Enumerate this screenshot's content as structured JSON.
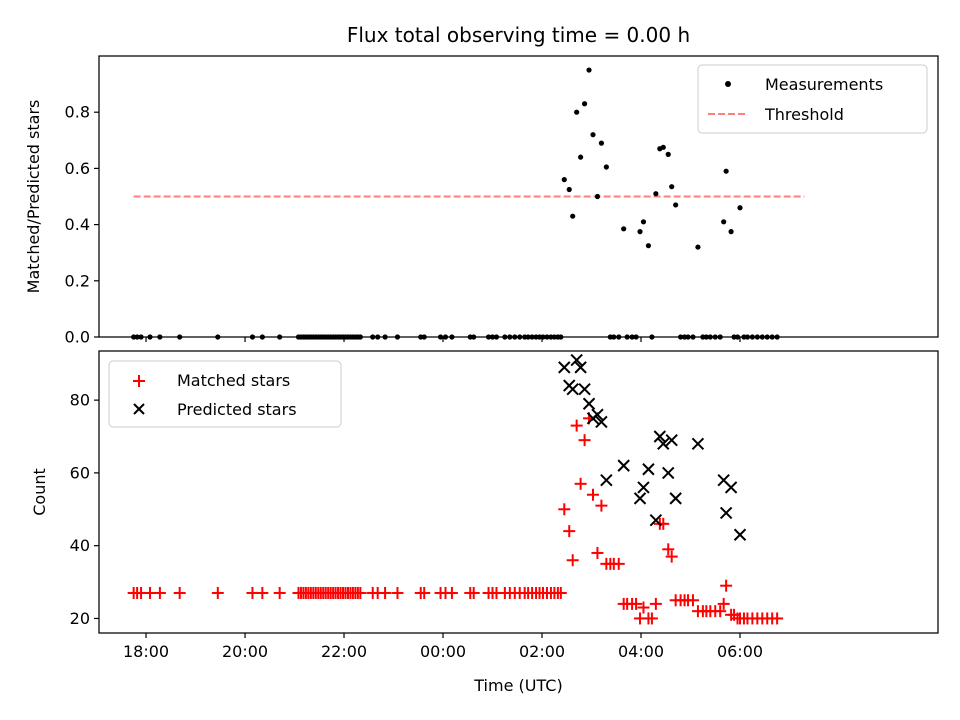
{
  "chart_data": [
    {
      "type": "scatter",
      "title": "Flux total observing time = 0.00 h",
      "xlabel": "",
      "ylabel": "Matched/Predicted stars",
      "xlim": [
        -6.95,
        10.0
      ],
      "ylim": [
        0.0,
        1.0
      ],
      "yticks": [
        0.0,
        0.2,
        0.4,
        0.6,
        0.8
      ],
      "ytick_labels": [
        "0.0",
        "0.2",
        "0.4",
        "0.6",
        "0.8"
      ],
      "legend": {
        "position": "upper right",
        "entries": [
          {
            "label": "Measurements",
            "marker": "dot",
            "color": "#000000"
          },
          {
            "label": "Threshold",
            "marker": "dashed-line",
            "color": "#ff7f7f"
          }
        ]
      },
      "threshold": {
        "value": 0.5,
        "x": [
          -6.25,
          7.3
        ]
      },
      "series": [
        {
          "name": "Measurements",
          "points": [
            [
              -6.25,
              0
            ],
            [
              -6.18,
              0
            ],
            [
              -6.1,
              0
            ],
            [
              -5.92,
              0
            ],
            [
              -5.72,
              0
            ],
            [
              -5.32,
              0
            ],
            [
              -4.55,
              0
            ],
            [
              -3.85,
              0
            ],
            [
              -3.65,
              0
            ],
            [
              -3.3,
              0
            ],
            [
              -2.92,
              0
            ],
            [
              -2.87,
              0
            ],
            [
              -2.82,
              0
            ],
            [
              -2.77,
              0
            ],
            [
              -2.72,
              0
            ],
            [
              -2.67,
              0
            ],
            [
              -2.62,
              0
            ],
            [
              -2.57,
              0
            ],
            [
              -2.52,
              0
            ],
            [
              -2.47,
              0
            ],
            [
              -2.42,
              0
            ],
            [
              -2.37,
              0
            ],
            [
              -2.32,
              0
            ],
            [
              -2.27,
              0
            ],
            [
              -2.22,
              0
            ],
            [
              -2.17,
              0
            ],
            [
              -2.12,
              0
            ],
            [
              -2.07,
              0
            ],
            [
              -2.02,
              0
            ],
            [
              -1.97,
              0
            ],
            [
              -1.92,
              0
            ],
            [
              -1.87,
              0
            ],
            [
              -1.82,
              0
            ],
            [
              -1.77,
              0
            ],
            [
              -1.72,
              0
            ],
            [
              -1.67,
              0
            ],
            [
              -1.42,
              0
            ],
            [
              -1.32,
              0
            ],
            [
              -1.17,
              0
            ],
            [
              -0.92,
              0
            ],
            [
              -0.45,
              0
            ],
            [
              -0.38,
              0
            ],
            [
              -0.05,
              0
            ],
            [
              0.05,
              0
            ],
            [
              0.18,
              0
            ],
            [
              0.55,
              0
            ],
            [
              0.62,
              0
            ],
            [
              0.92,
              0
            ],
            [
              1.0,
              0
            ],
            [
              1.08,
              0
            ],
            [
              1.25,
              0
            ],
            [
              1.35,
              0
            ],
            [
              1.45,
              0
            ],
            [
              1.55,
              0
            ],
            [
              1.65,
              0
            ],
            [
              1.72,
              0
            ],
            [
              1.8,
              0
            ],
            [
              1.88,
              0
            ],
            [
              1.95,
              0
            ],
            [
              2.02,
              0
            ],
            [
              2.1,
              0
            ],
            [
              2.18,
              0
            ],
            [
              2.25,
              0
            ],
            [
              2.32,
              0
            ],
            [
              2.38,
              0
            ],
            [
              2.45,
              0.56
            ],
            [
              2.55,
              0.525
            ],
            [
              2.62,
              0.43
            ],
            [
              2.7,
              0.8
            ],
            [
              2.78,
              0.64
            ],
            [
              2.86,
              0.83
            ],
            [
              2.95,
              0.95
            ],
            [
              3.03,
              0.72
            ],
            [
              3.12,
              0.5
            ],
            [
              3.2,
              0.69
            ],
            [
              3.3,
              0.605
            ],
            [
              3.38,
              0
            ],
            [
              3.45,
              0
            ],
            [
              3.55,
              0
            ],
            [
              3.65,
              0.385
            ],
            [
              3.72,
              0
            ],
            [
              3.82,
              0
            ],
            [
              3.9,
              0
            ],
            [
              3.98,
              0.375
            ],
            [
              4.05,
              0.41
            ],
            [
              4.15,
              0.325
            ],
            [
              4.22,
              0
            ],
            [
              4.3,
              0.51
            ],
            [
              4.38,
              0.67
            ],
            [
              4.45,
              0.675
            ],
            [
              4.55,
              0.65
            ],
            [
              4.62,
              0.535
            ],
            [
              4.7,
              0.47
            ],
            [
              4.8,
              0
            ],
            [
              4.88,
              0
            ],
            [
              4.95,
              0
            ],
            [
              5.05,
              0
            ],
            [
              5.15,
              0.32
            ],
            [
              5.25,
              0
            ],
            [
              5.32,
              0
            ],
            [
              5.4,
              0
            ],
            [
              5.5,
              0
            ],
            [
              5.6,
              0
            ],
            [
              5.67,
              0.41
            ],
            [
              5.72,
              0.59
            ],
            [
              5.82,
              0.375
            ],
            [
              5.88,
              0
            ],
            [
              5.95,
              0
            ],
            [
              6.0,
              0.46
            ],
            [
              6.08,
              0
            ],
            [
              6.15,
              0
            ],
            [
              6.25,
              0
            ],
            [
              6.35,
              0
            ],
            [
              6.45,
              0
            ],
            [
              6.55,
              0
            ],
            [
              6.65,
              0
            ],
            [
              6.75,
              0
            ]
          ]
        }
      ]
    },
    {
      "type": "scatter",
      "title": "",
      "xlabel": "Time (UTC)",
      "ylabel": "Count",
      "xlim": [
        -6.95,
        10.0
      ],
      "ylim": [
        16.0,
        93.5
      ],
      "yticks": [
        20,
        40,
        60,
        80
      ],
      "ytick_labels": [
        "20",
        "40",
        "60",
        "80"
      ],
      "xticks": [
        -6,
        -4,
        -2,
        0,
        2,
        4,
        6
      ],
      "xtick_labels": [
        "18:00",
        "20:00",
        "22:00",
        "00:00",
        "02:00",
        "04:00",
        "06:00"
      ],
      "legend": {
        "position": "upper left",
        "entries": [
          {
            "label": "Matched stars",
            "marker": "plus",
            "color": "#ff0000"
          },
          {
            "label": "Predicted stars",
            "marker": "x",
            "color": "#000000"
          }
        ]
      },
      "series": [
        {
          "name": "Matched stars",
          "points": [
            [
              -6.25,
              27
            ],
            [
              -6.18,
              27
            ],
            [
              -6.1,
              27
            ],
            [
              -5.92,
              27
            ],
            [
              -5.72,
              27
            ],
            [
              -5.32,
              27
            ],
            [
              -4.55,
              27
            ],
            [
              -3.85,
              27
            ],
            [
              -3.65,
              27
            ],
            [
              -3.3,
              27
            ],
            [
              -2.92,
              27
            ],
            [
              -2.87,
              27
            ],
            [
              -2.82,
              27
            ],
            [
              -2.77,
              27
            ],
            [
              -2.72,
              27
            ],
            [
              -2.67,
              27
            ],
            [
              -2.62,
              27
            ],
            [
              -2.57,
              27
            ],
            [
              -2.52,
              27
            ],
            [
              -2.47,
              27
            ],
            [
              -2.42,
              27
            ],
            [
              -2.37,
              27
            ],
            [
              -2.32,
              27
            ],
            [
              -2.27,
              27
            ],
            [
              -2.22,
              27
            ],
            [
              -2.17,
              27
            ],
            [
              -2.12,
              27
            ],
            [
              -2.07,
              27
            ],
            [
              -2.02,
              27
            ],
            [
              -1.97,
              27
            ],
            [
              -1.92,
              27
            ],
            [
              -1.87,
              27
            ],
            [
              -1.82,
              27
            ],
            [
              -1.77,
              27
            ],
            [
              -1.72,
              27
            ],
            [
              -1.67,
              27
            ],
            [
              -1.42,
              27
            ],
            [
              -1.32,
              27
            ],
            [
              -1.17,
              27
            ],
            [
              -0.92,
              27
            ],
            [
              -0.45,
              27
            ],
            [
              -0.38,
              27
            ],
            [
              -0.05,
              27
            ],
            [
              0.05,
              27
            ],
            [
              0.18,
              27
            ],
            [
              0.55,
              27
            ],
            [
              0.62,
              27
            ],
            [
              0.92,
              27
            ],
            [
              1.0,
              27
            ],
            [
              1.08,
              27
            ],
            [
              1.25,
              27
            ],
            [
              1.35,
              27
            ],
            [
              1.45,
              27
            ],
            [
              1.55,
              27
            ],
            [
              1.65,
              27
            ],
            [
              1.72,
              27
            ],
            [
              1.8,
              27
            ],
            [
              1.88,
              27
            ],
            [
              1.95,
              27
            ],
            [
              2.02,
              27
            ],
            [
              2.1,
              27
            ],
            [
              2.18,
              27
            ],
            [
              2.25,
              27
            ],
            [
              2.32,
              27
            ],
            [
              2.38,
              27
            ],
            [
              2.45,
              50
            ],
            [
              2.55,
              44
            ],
            [
              2.62,
              36
            ],
            [
              2.7,
              73
            ],
            [
              2.78,
              57
            ],
            [
              2.86,
              69
            ],
            [
              2.95,
              75
            ],
            [
              3.03,
              54
            ],
            [
              3.12,
              38
            ],
            [
              3.2,
              51
            ],
            [
              3.3,
              35
            ],
            [
              3.38,
              35
            ],
            [
              3.45,
              35
            ],
            [
              3.55,
              35
            ],
            [
              3.65,
              24
            ],
            [
              3.72,
              24
            ],
            [
              3.82,
              24
            ],
            [
              3.9,
              24
            ],
            [
              3.98,
              20
            ],
            [
              4.05,
              23
            ],
            [
              4.15,
              20
            ],
            [
              4.22,
              20
            ],
            [
              4.3,
              24
            ],
            [
              4.38,
              46
            ],
            [
              4.45,
              46
            ],
            [
              4.55,
              39
            ],
            [
              4.62,
              37
            ],
            [
              4.7,
              25
            ],
            [
              4.8,
              25
            ],
            [
              4.88,
              25
            ],
            [
              4.95,
              25
            ],
            [
              5.05,
              25
            ],
            [
              5.15,
              22
            ],
            [
              5.25,
              22
            ],
            [
              5.32,
              22
            ],
            [
              5.4,
              22
            ],
            [
              5.5,
              22
            ],
            [
              5.6,
              22
            ],
            [
              5.67,
              24
            ],
            [
              5.72,
              29
            ],
            [
              5.82,
              21
            ],
            [
              5.88,
              21
            ],
            [
              5.95,
              20
            ],
            [
              6.0,
              20
            ],
            [
              6.08,
              20
            ],
            [
              6.15,
              20
            ],
            [
              6.25,
              20
            ],
            [
              6.35,
              20
            ],
            [
              6.45,
              20
            ],
            [
              6.55,
              20
            ],
            [
              6.65,
              20
            ],
            [
              6.75,
              20
            ]
          ]
        },
        {
          "name": "Predicted stars",
          "points": [
            [
              2.45,
              89
            ],
            [
              2.55,
              84
            ],
            [
              2.62,
              83
            ],
            [
              2.7,
              91
            ],
            [
              2.78,
              89
            ],
            [
              2.86,
              83
            ],
            [
              2.95,
              79
            ],
            [
              3.03,
              75
            ],
            [
              3.12,
              76
            ],
            [
              3.2,
              74
            ],
            [
              3.3,
              58
            ],
            [
              3.65,
              62
            ],
            [
              3.98,
              53
            ],
            [
              4.05,
              56
            ],
            [
              4.15,
              61
            ],
            [
              4.3,
              47
            ],
            [
              4.38,
              70
            ],
            [
              4.45,
              68
            ],
            [
              4.55,
              60
            ],
            [
              4.62,
              69
            ],
            [
              4.7,
              53
            ],
            [
              5.15,
              68
            ],
            [
              5.67,
              58
            ],
            [
              5.72,
              49
            ],
            [
              5.82,
              56
            ],
            [
              6.0,
              43
            ]
          ]
        }
      ]
    }
  ]
}
